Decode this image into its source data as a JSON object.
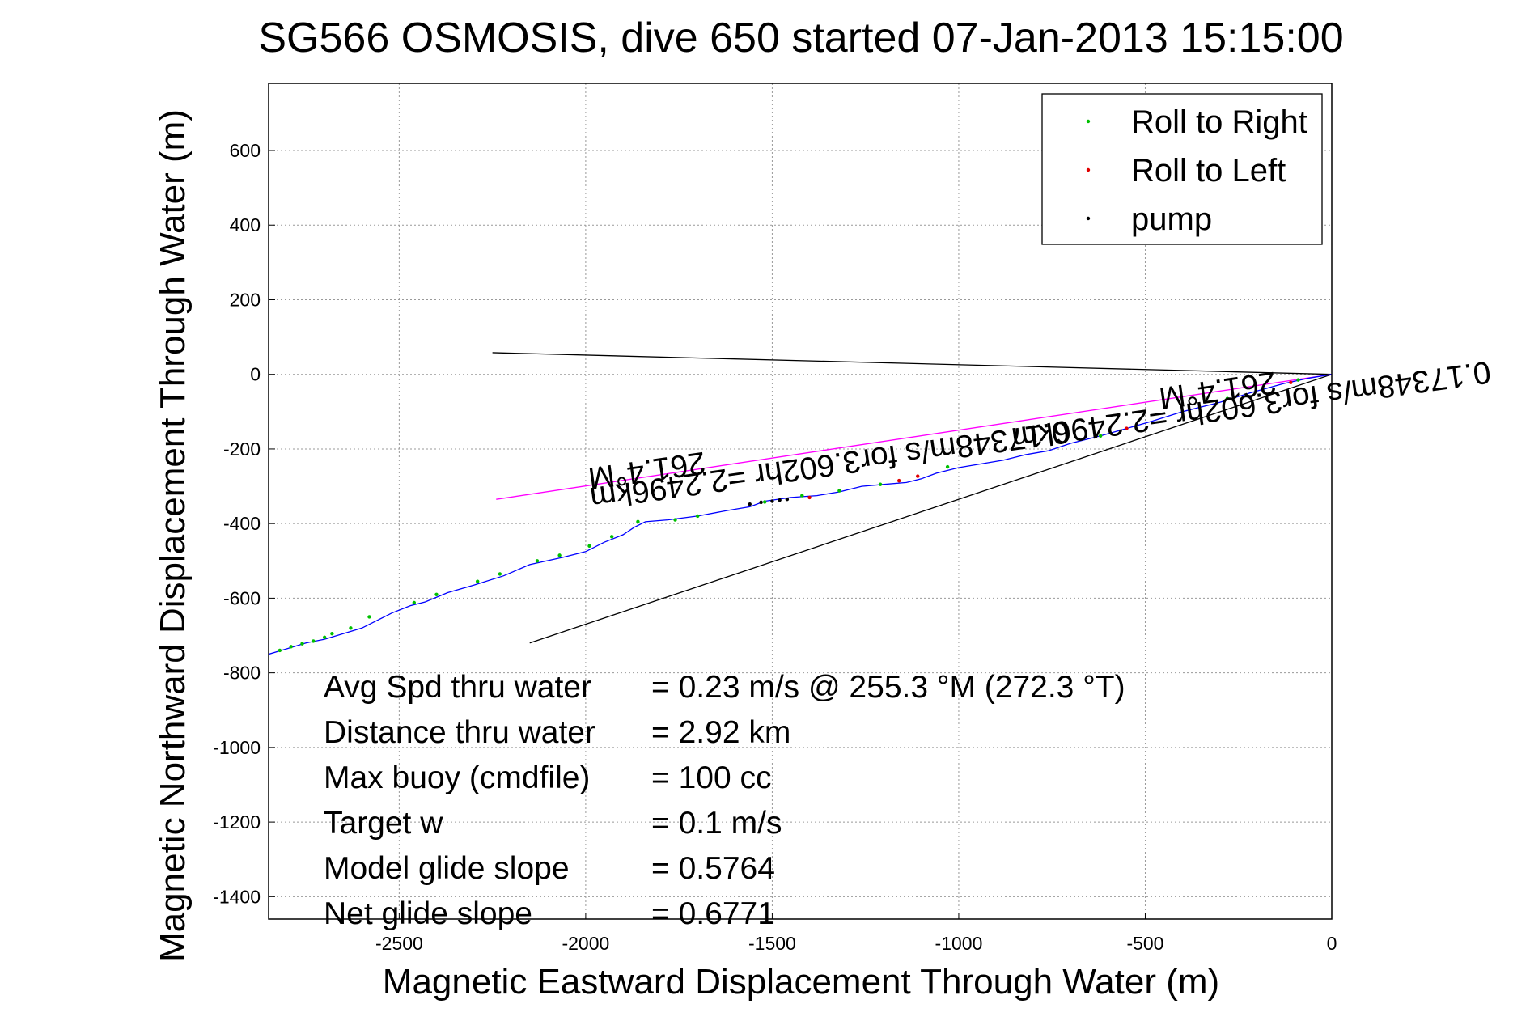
{
  "chart_data": {
    "type": "line",
    "title": "SG566 OSMOSIS, dive 650 started 07-Jan-2013 15:15:00",
    "xlabel": "Magnetic Eastward Displacement Through Water (m)",
    "ylabel": "Magnetic Northward Displacement Through Water (m)",
    "xlim": [
      -2850,
      0
    ],
    "ylim": [
      -1460,
      780
    ],
    "grid": true,
    "x_ticks": [
      -2500,
      -2000,
      -1500,
      -1000,
      -500,
      0
    ],
    "y_ticks": [
      600,
      400,
      200,
      0,
      -200,
      -400,
      -600,
      -800,
      -1000,
      -1200,
      -1400
    ],
    "legend": {
      "placement": "top-right",
      "entries": [
        {
          "label": "Roll to Right",
          "color": "#00c000"
        },
        {
          "label": "Roll to Left",
          "color": "#e00000"
        },
        {
          "label": "pump",
          "color": "#000000"
        }
      ]
    },
    "series": [
      {
        "color": "#0000ff",
        "style": "track",
        "x": [
          0,
          -60,
          -130,
          -220,
          -300,
          -400,
          -480,
          -550,
          -620,
          -700,
          -760,
          -820,
          -880,
          -940,
          -1000,
          -1060,
          -1100,
          -1140,
          -1200,
          -1260,
          -1320,
          -1380,
          -1450,
          -1520,
          -1560,
          -1620,
          -1700,
          -1780,
          -1840,
          -1870,
          -1900,
          -1950,
          -2000,
          -2060,
          -2150,
          -2220,
          -2300,
          -2370,
          -2430,
          -2470,
          -2520,
          -2560,
          -2600,
          -2650,
          -2700,
          -2750,
          -2800,
          -2850
        ],
        "y": [
          0,
          -10,
          -25,
          -50,
          -75,
          -100,
          -125,
          -145,
          -165,
          -185,
          -205,
          -215,
          -230,
          -240,
          -250,
          -265,
          -280,
          -290,
          -295,
          -300,
          -315,
          -325,
          -330,
          -340,
          -355,
          -365,
          -380,
          -390,
          -395,
          -410,
          -430,
          -450,
          -475,
          -490,
          -510,
          -540,
          -565,
          -585,
          -610,
          -620,
          -640,
          -660,
          -680,
          -695,
          -710,
          -720,
          -735,
          -750
        ]
      },
      {
        "color": "#00c000",
        "style": "points",
        "x": [
          -90,
          -280,
          -620,
          -1030,
          -1210,
          -1320,
          -1420,
          -1520,
          -1700,
          -1760,
          -1860,
          -1930,
          -1990,
          -2070,
          -2130,
          -2230,
          -2290,
          -2400,
          -2460,
          -2580,
          -2630,
          -2680,
          -2700,
          -2730,
          -2760,
          -2790,
          -2820
        ],
        "y": [
          -15,
          -65,
          -165,
          -248,
          -295,
          -312,
          -325,
          -342,
          -380,
          -390,
          -395,
          -435,
          -460,
          -485,
          -500,
          -535,
          -555,
          -590,
          -612,
          -650,
          -680,
          -695,
          -705,
          -715,
          -722,
          -730,
          -740
        ]
      },
      {
        "color": "#e00000",
        "style": "points",
        "x": [
          -110,
          -550,
          -1110,
          -1160,
          -1400
        ],
        "y": [
          -22,
          -145,
          -273,
          -285,
          -330
        ]
      },
      {
        "color": "#000000",
        "style": "points",
        "x": [
          -1460,
          -1480,
          -1500,
          -1530,
          -1560
        ],
        "y": [
          -335,
          -337,
          -340,
          -343,
          -348
        ]
      }
    ],
    "reference_lines": [
      {
        "color": "#000000",
        "x1": 0,
        "y1": 0,
        "x2": -2250,
        "y2": 58
      },
      {
        "color": "#000000",
        "x1": 0,
        "y1": 0,
        "x2": -2150,
        "y2": -720
      },
      {
        "color": "#ff00ff",
        "x1": 0,
        "y1": 0,
        "x2": -2240,
        "y2": -335
      }
    ],
    "annotations": [
      {
        "text": "261.4°M",
        "x": -1840,
        "y": -230,
        "rotate": 172
      },
      {
        "text": "0.17348m/s for3.602hr =2.2496km",
        "x": -1350,
        "y": -215,
        "rotate": 172
      },
      {
        "text": "261.4°M",
        "x": -310,
        "y": -15,
        "rotate": 172
      },
      {
        "text": "0.17348m/s for3.602hr =2.2496km",
        "x": -220,
        "y": -55,
        "rotate": 172
      }
    ],
    "stats": [
      {
        "label": "Avg Spd thru water",
        "value": "=  0.23 m/s @ 255.3 °M (272.3 °T)"
      },
      {
        "label": "Distance thru water",
        "value": "=  2.92 km"
      },
      {
        "label": "Max buoy (cmdfile)",
        "value": "= 100 cc"
      },
      {
        "label": "Target w",
        "value": "= 0.1 m/s"
      },
      {
        "label": "Model glide slope",
        "value": "= 0.5764"
      },
      {
        "label": "Net glide slope",
        "value": "= 0.6771"
      }
    ]
  }
}
